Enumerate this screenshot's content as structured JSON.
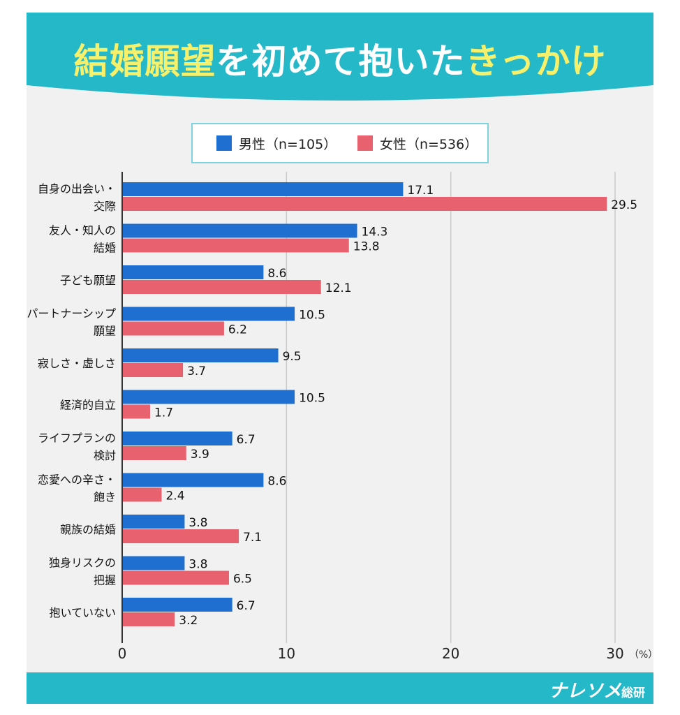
{
  "title": {
    "part1": "結婚願望",
    "part2": "を初めて抱いた",
    "part3": "きっかけ"
  },
  "colors": {
    "male": "#1f6fd1",
    "female": "#e8616f",
    "band": "#25b8c9",
    "title_highlight": "#f7f06a"
  },
  "chart_data": {
    "type": "bar",
    "orientation": "horizontal",
    "categories": [
      "自身の出会い・交際",
      "友人・知人の結婚",
      "子ども願望",
      "パートナーシップ願望",
      "寂しさ・虚しさ",
      "経済的自立",
      "ライフプランの検討",
      "恋愛への辛さ・飽き",
      "親族の結婚",
      "独身リスクの把握",
      "抱いていない"
    ],
    "category_label_lines": [
      [
        "自身の出会い・",
        "交際"
      ],
      [
        "友人・知人の",
        "結婚"
      ],
      [
        "子ども願望"
      ],
      [
        "パートナーシップ",
        "願望"
      ],
      [
        "寂しさ・虚しさ"
      ],
      [
        "経済的自立"
      ],
      [
        "ライフプランの",
        "検討"
      ],
      [
        "恋愛への辛さ・",
        "飽き"
      ],
      [
        "親族の結婚"
      ],
      [
        "独身リスクの",
        "把握"
      ],
      [
        "抱いていない"
      ]
    ],
    "series": [
      {
        "name": "男性（n=105）",
        "values": [
          17.1,
          14.3,
          8.6,
          10.5,
          9.5,
          10.5,
          6.7,
          8.6,
          3.8,
          3.8,
          6.7
        ]
      },
      {
        "name": "女性（n=536）",
        "values": [
          29.5,
          13.8,
          12.1,
          6.2,
          3.7,
          1.7,
          3.9,
          2.4,
          7.1,
          6.5,
          3.2
        ]
      }
    ],
    "value_labels": [
      [
        "17.1",
        "14.3",
        "8.6",
        "10.5",
        "9.5",
        "10.5",
        "6.7",
        "8.6",
        "3.8",
        "3.8",
        "6.7"
      ],
      [
        "29.5",
        "13.8",
        "12.1",
        "6.2",
        "3.7",
        "1.7",
        "3.9",
        "2.4",
        "7.1",
        "6.5",
        "3.2"
      ]
    ],
    "xlim": [
      0,
      30
    ],
    "x_ticks": [
      "0",
      "10",
      "20",
      "30"
    ],
    "x_unit": "（%）",
    "grid": true,
    "legend_position": "top-center"
  },
  "brand": {
    "name": "ナレソメ",
    "suffix": "総研"
  }
}
